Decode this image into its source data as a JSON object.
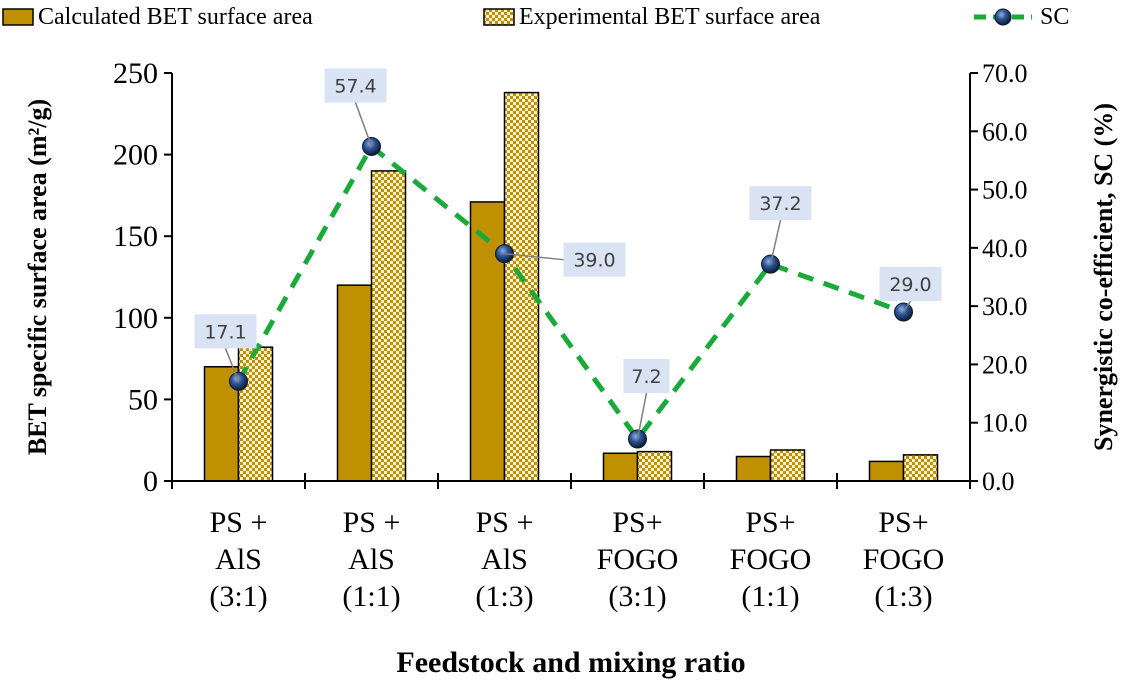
{
  "chart_data": {
    "type": "bar",
    "categories": [
      [
        "PS +",
        "AlS",
        "(3:1)"
      ],
      [
        "PS +",
        "AlS",
        "(1:1)"
      ],
      [
        "PS +",
        "AlS",
        "(1:3)"
      ],
      [
        "PS+",
        "FOGO",
        "(3:1)"
      ],
      [
        "PS+",
        "FOGO",
        "(1:1)"
      ],
      [
        "PS+",
        "FOGO",
        "(1:3)"
      ]
    ],
    "series": [
      {
        "name": "Calculated BET surface area",
        "type": "bar",
        "axis": "left",
        "color": "#bf9000",
        "values": [
          70,
          120,
          171,
          17,
          15,
          12
        ]
      },
      {
        "name": "Experimental BET surface area",
        "type": "bar",
        "axis": "left",
        "pattern": "checker",
        "color": "#bf9000",
        "values": [
          82,
          190,
          238,
          18,
          19,
          16
        ]
      },
      {
        "name": "SC",
        "type": "line",
        "axis": "right",
        "color": "#1aaa3a",
        "marker_color": "#1f3864",
        "values": [
          17.1,
          57.4,
          39.0,
          7.2,
          37.2,
          29.0
        ],
        "labels": [
          "17.1",
          "57.4",
          "39.0",
          "7.2",
          "37.2",
          "29.0"
        ]
      }
    ],
    "xlabel": "Feedstock and mixing ratio",
    "ylabel_left": "BET specific surface area (m²/g)",
    "ylabel_right": "Synergistic co-efficient, SC (%)",
    "ylim_left": [
      0,
      250
    ],
    "ylim_right": [
      0,
      70
    ],
    "yticks_left": [
      "0",
      "50",
      "100",
      "150",
      "200",
      "250"
    ],
    "yticks_right": [
      "0.0",
      "10.0",
      "20.0",
      "30.0",
      "40.0",
      "50.0",
      "60.0",
      "70.0"
    ],
    "legend_position": "top",
    "grid": false
  }
}
